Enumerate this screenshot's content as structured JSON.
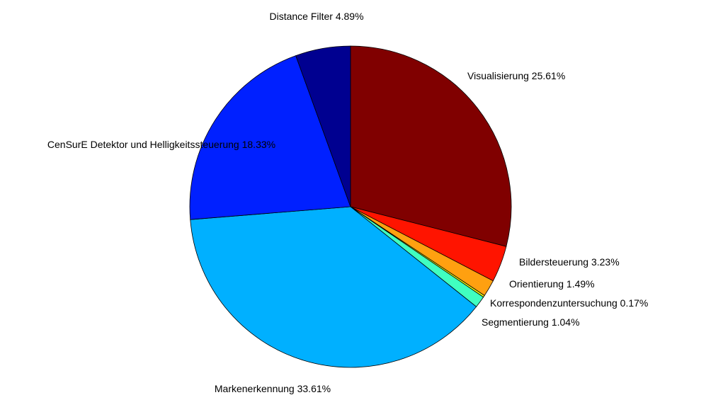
{
  "chart_data": {
    "type": "pie",
    "title": "",
    "slices": [
      {
        "label": "Visualisierung 25.61%",
        "name": "Visualisierung",
        "value": 25.61,
        "color": "#800000"
      },
      {
        "label": "Bildersteuerung 3.23%",
        "name": "Bildersteuerung",
        "value": 3.23,
        "color": "#ff1400"
      },
      {
        "label": "Orientierung 1.49%",
        "name": "Orientierung",
        "value": 1.49,
        "color": "#ffa010"
      },
      {
        "label": "Korrespondenzuntersuchung 0.17%",
        "name": "Korrespondenzuntersuchung",
        "value": 0.17,
        "color": "#f0ff10"
      },
      {
        "label": "Segmentierung 1.04%",
        "name": "Segmentierung",
        "value": 1.04,
        "color": "#40ffc0"
      },
      {
        "label": "Markenerkennung 33.61%",
        "name": "Markenerkennung",
        "value": 33.61,
        "color": "#00b0ff"
      },
      {
        "label": "CenSurE Detektor und Helligkeitssteuerung 18.33%",
        "name": "CenSurE Detektor und Helligkeitssteuerung",
        "value": 18.33,
        "color": "#0020ff"
      },
      {
        "label": "Distance Filter 4.89%",
        "name": "Distance Filter",
        "value": 4.89,
        "color": "#000090"
      }
    ],
    "start": "top",
    "direction": "clockwise",
    "legend": "none",
    "grid": false
  }
}
